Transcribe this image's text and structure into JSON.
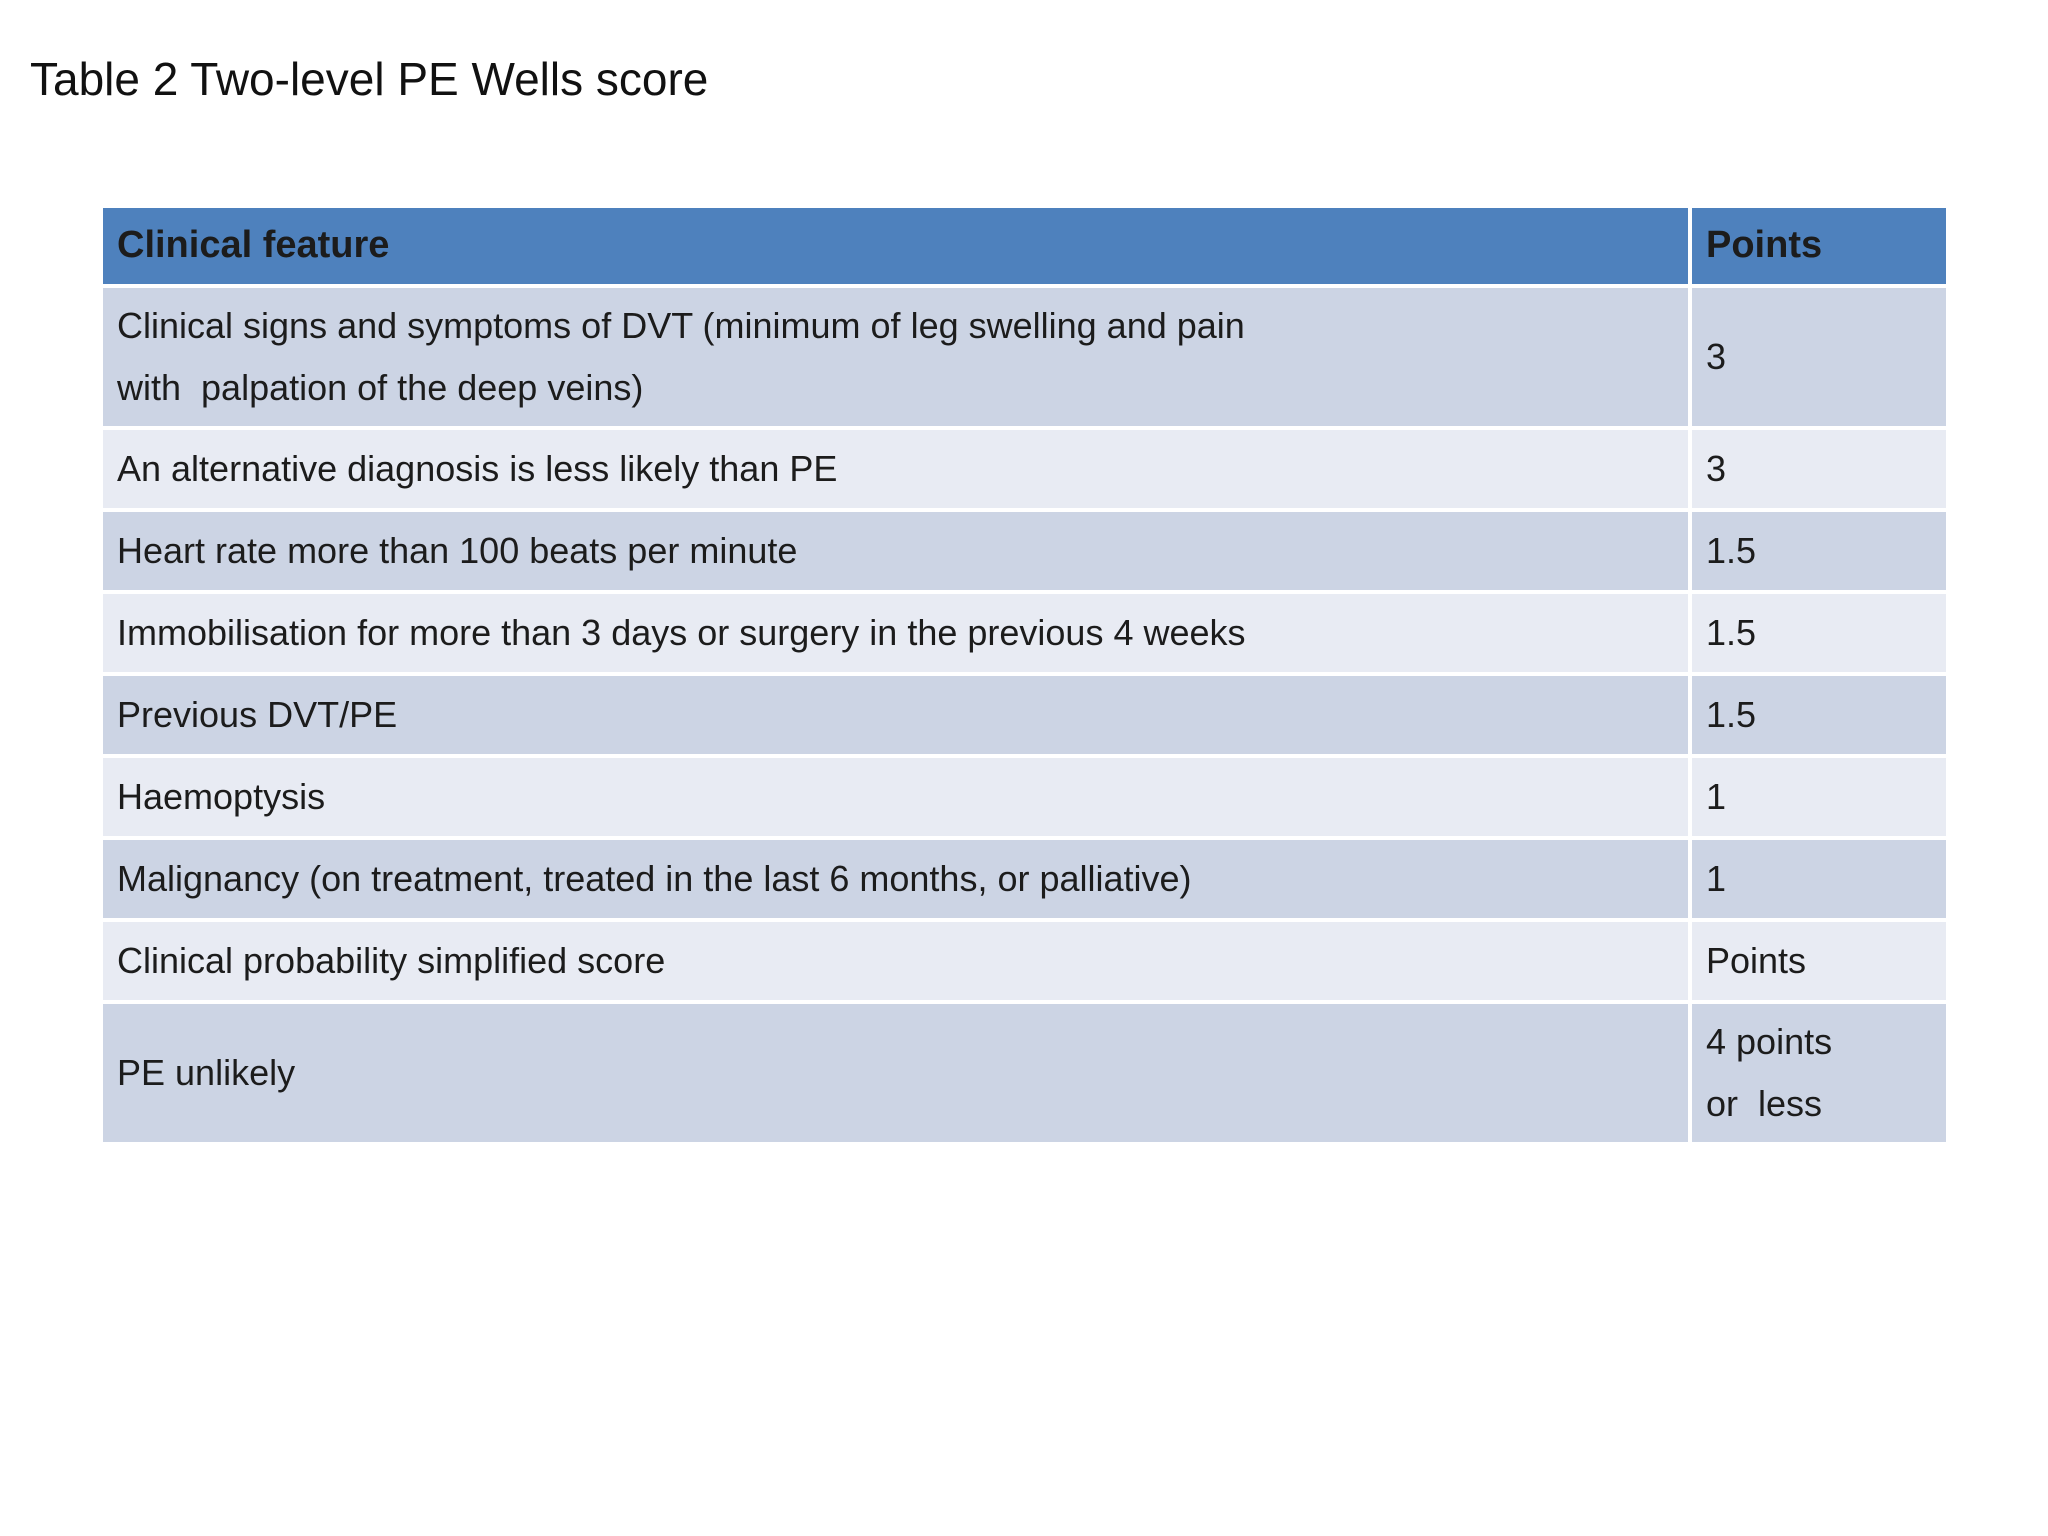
{
  "title": "Table 2 Two-level PE Wells score",
  "colors": {
    "header_bg": "#4e81bd",
    "row_dark_bg": "#ccd4e4",
    "row_light_bg": "#e8ebf3",
    "text": "#1c1c1c",
    "page_bg": "#ffffff"
  },
  "table": {
    "headers": [
      "Clinical feature",
      "Points"
    ],
    "rows": [
      {
        "feature": "Clinical signs and symptoms of DVT (minimum of leg swelling and pain\nwith  palpation of the deep veins)",
        "points": "3"
      },
      {
        "feature": "An alternative diagnosis is less likely than PE",
        "points": "3"
      },
      {
        "feature": "Heart rate more than 100 beats per minute",
        "points": "1.5"
      },
      {
        "feature": "Immobilisation for more than 3 days or surgery in the previous 4 weeks",
        "points": "1.5"
      },
      {
        "feature": "Previous DVT/PE",
        "points": "1.5"
      },
      {
        "feature": "Haemoptysis",
        "points": "1"
      },
      {
        "feature": "Malignancy (on treatment, treated in the last 6 months, or palliative)",
        "points": "1"
      },
      {
        "feature": "Clinical probability simplified score",
        "points": "Points"
      },
      {
        "feature": "PE unlikely",
        "points": "4 points\nor  less"
      }
    ]
  }
}
